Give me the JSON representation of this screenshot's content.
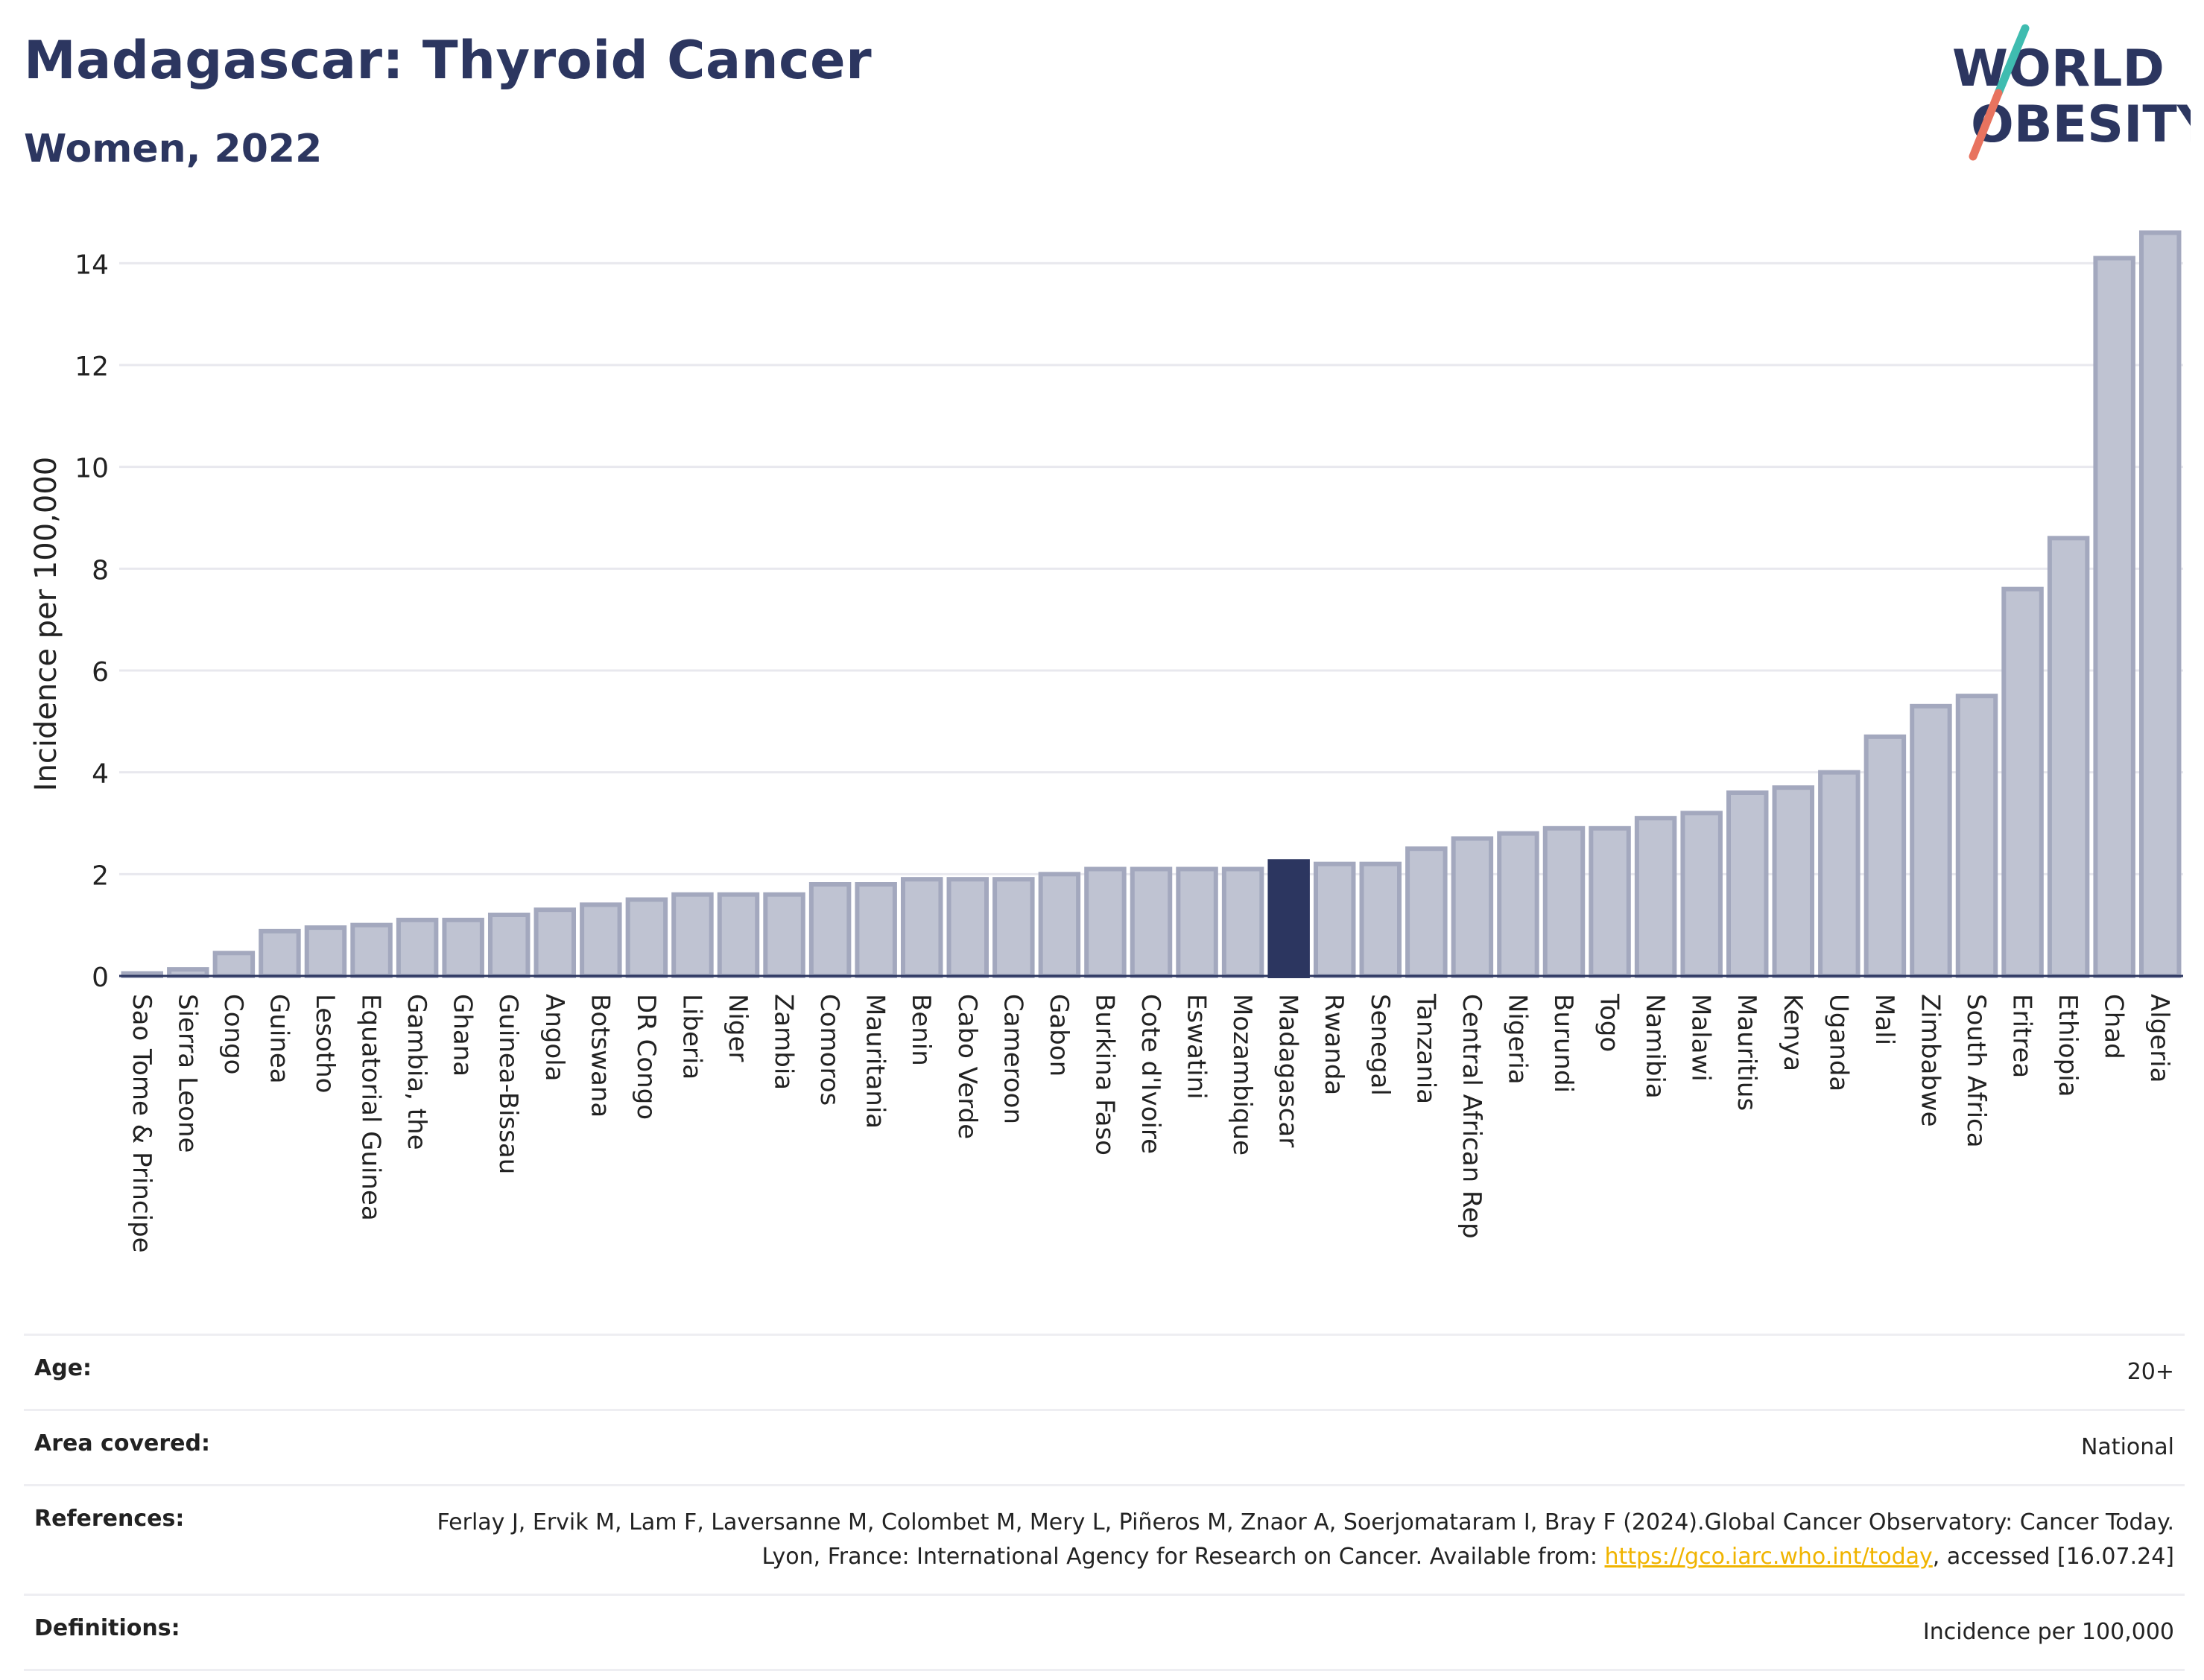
{
  "header": {
    "title": "Madagascar: Thyroid Cancer",
    "subtitle": "Women, 2022"
  },
  "logo": {
    "line1": "WORLD",
    "line2": "OBESITY"
  },
  "chart_data": {
    "type": "bar",
    "ylabel": "Incidence per 100,000",
    "xlabel": "",
    "ylim": [
      0,
      15
    ],
    "yticks": [
      0,
      2,
      4,
      6,
      8,
      10,
      12,
      14
    ],
    "grid": true,
    "highlight": "Madagascar",
    "colors": {
      "bar": "#bfc3d2",
      "bar_edge": "#a3a8be",
      "highlight": "#2c3660"
    },
    "categories": [
      "Sao Tome & Principe",
      "Sierra Leone",
      "Congo",
      "Guinea",
      "Lesotho",
      "Equatorial Guinea",
      "Gambia, the",
      "Ghana",
      "Guinea-Bissau",
      "Angola",
      "Botswana",
      "DR Congo",
      "Liberia",
      "Niger",
      "Zambia",
      "Comoros",
      "Mauritania",
      "Benin",
      "Cabo Verde",
      "Cameroon",
      "Gabon",
      "Burkina Faso",
      "Cote d'Ivoire",
      "Eswatini",
      "Mozambique",
      "Madagascar",
      "Rwanda",
      "Senegal",
      "Tanzania",
      "Central African Rep",
      "Nigeria",
      "Burundi",
      "Togo",
      "Namibia",
      "Malawi",
      "Mauritius",
      "Kenya",
      "Uganda",
      "Mali",
      "Zimbabwe",
      "South Africa",
      "Eritrea",
      "Ethiopia",
      "Chad",
      "Algeria"
    ],
    "values": [
      0.05,
      0.13,
      0.45,
      0.88,
      0.95,
      1.0,
      1.1,
      1.1,
      1.2,
      1.3,
      1.4,
      1.5,
      1.6,
      1.6,
      1.6,
      1.8,
      1.8,
      1.9,
      1.9,
      1.9,
      2.0,
      2.1,
      2.1,
      2.1,
      2.1,
      2.25,
      2.2,
      2.2,
      2.5,
      2.7,
      2.8,
      2.9,
      2.9,
      3.1,
      3.2,
      3.6,
      3.7,
      4.0,
      4.7,
      5.3,
      5.5,
      7.6,
      8.6,
      14.1,
      14.6
    ]
  },
  "meta": [
    {
      "label": "Age:",
      "value": "20+"
    },
    {
      "label": "Area covered:",
      "value": "National"
    },
    {
      "label": "References:",
      "value_pre": "Ferlay J, Ervik M, Lam F, Laversanne M, Colombet M, Mery L, Piñeros M, Znaor A, Soerjomataram I, Bray F (2024).Global Cancer Observatory: Cancer Today. Lyon, France: International Agency for Research on Cancer. Available from: ",
      "link": "https://gco.iarc.who.int/today",
      "value_post": ", accessed [16.07.24]"
    },
    {
      "label": "Definitions:",
      "value": "Incidence per 100,000"
    }
  ]
}
